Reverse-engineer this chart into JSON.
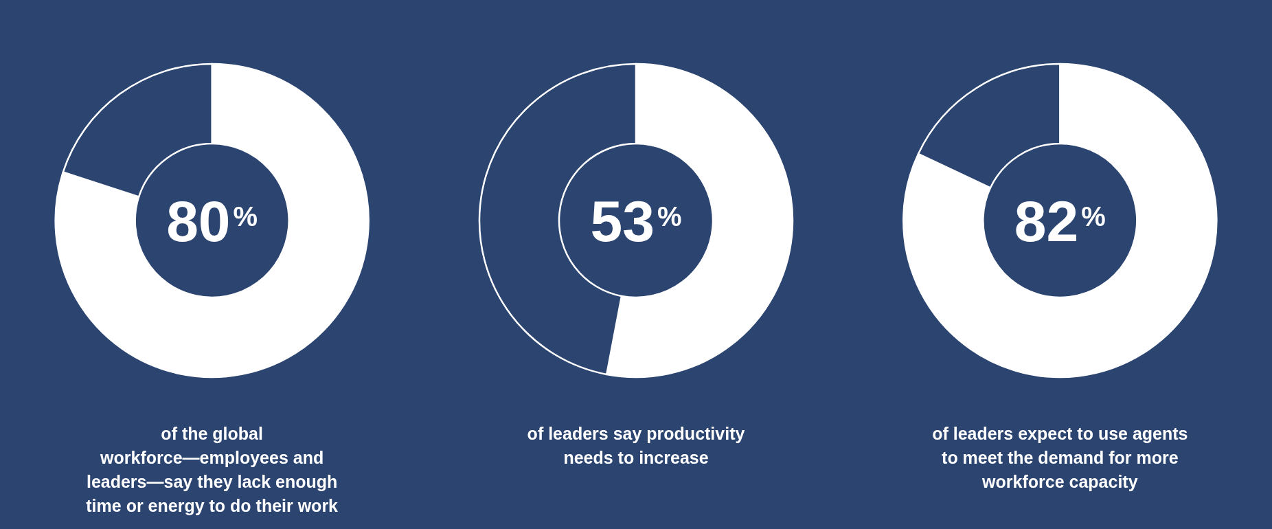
{
  "chart_data": [
    {
      "type": "donut",
      "categories": [
        null,
        null
      ],
      "values": [
        80,
        20
      ],
      "colors": [
        "#ffffff",
        "#2b4470"
      ],
      "value_labels": [
        "80$^{%}$",
        null
      ],
      "annotations": [
        "of the global workforce—employees and leaders—say they lack enough time or energy to do their work"
      ]
    },
    {
      "type": "donut",
      "categories": [
        null,
        null
      ],
      "values": [
        53,
        47
      ],
      "colors": [
        "#ffffff",
        "#2b4470"
      ],
      "value_labels": [
        "53$^{%}$",
        null
      ],
      "annotations": [
        "of leaders say productivity needs to increase"
      ]
    },
    {
      "type": "donut",
      "categories": [
        null,
        null
      ],
      "values": [
        82,
        18
      ],
      "colors": [
        "#ffffff",
        "#2b4470"
      ],
      "value_labels": [
        "82$^{%}$",
        null
      ],
      "annotations": [
        "of leaders expect to use agents to meet the demand for more workforce capacity"
      ]
    }
  ]
}
